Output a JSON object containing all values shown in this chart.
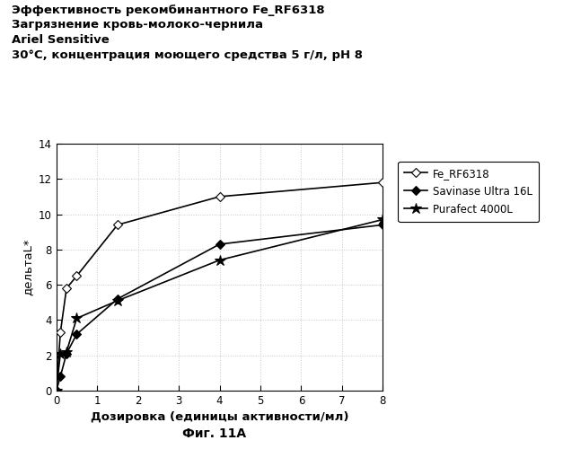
{
  "title_line1": "Эффективность рекомбинантного Fe_RF6318",
  "title_line2": "Загрязнение кровь-молоко-чернила",
  "title_line3": "Ariel Sensitive",
  "title_line4": "30°C, концентрация моющего средства 5 г/л, pH 8",
  "xlabel": "Дозировка (единицы активности/мл)",
  "ylabel": "дельтаL*",
  "caption": "Фиг. 11А",
  "xlim": [
    0,
    8
  ],
  "ylim": [
    0,
    14
  ],
  "xticks": [
    0,
    1,
    2,
    3,
    4,
    5,
    6,
    7,
    8
  ],
  "yticks": [
    0,
    2,
    4,
    6,
    8,
    10,
    12,
    14
  ],
  "series": [
    {
      "label": "Fe_RF6318",
      "x": [
        0,
        0.1,
        0.25,
        0.5,
        1.5,
        4,
        8
      ],
      "y": [
        0,
        3.3,
        5.8,
        6.5,
        9.4,
        11.0,
        11.8
      ],
      "marker": "D",
      "markersize": 5,
      "markerfacecolor": "white",
      "color": "black",
      "linewidth": 1.2
    },
    {
      "label": "Savinase Ultra 16L",
      "x": [
        0,
        0.1,
        0.25,
        0.5,
        1.5,
        4,
        8
      ],
      "y": [
        0,
        0.8,
        2.1,
        3.2,
        5.2,
        8.3,
        9.4
      ],
      "marker": "D",
      "markersize": 5,
      "markerfacecolor": "black",
      "color": "black",
      "linewidth": 1.2
    },
    {
      "label": "Purafect 4000L",
      "x": [
        0,
        0.1,
        0.25,
        0.5,
        1.5,
        4,
        8
      ],
      "y": [
        0,
        2.1,
        2.2,
        4.1,
        5.1,
        7.4,
        9.7
      ],
      "marker": "*",
      "markersize": 9,
      "markerfacecolor": "black",
      "color": "black",
      "linewidth": 1.2
    }
  ],
  "background_color": "#ffffff",
  "plot_bg_color": "#ffffff",
  "grid_color": "#c8c8c8",
  "legend_fontsize": 8.5,
  "axis_fontsize": 9.5,
  "title_fontsize": 9.5,
  "tick_fontsize": 8.5,
  "caption_fontsize": 10
}
